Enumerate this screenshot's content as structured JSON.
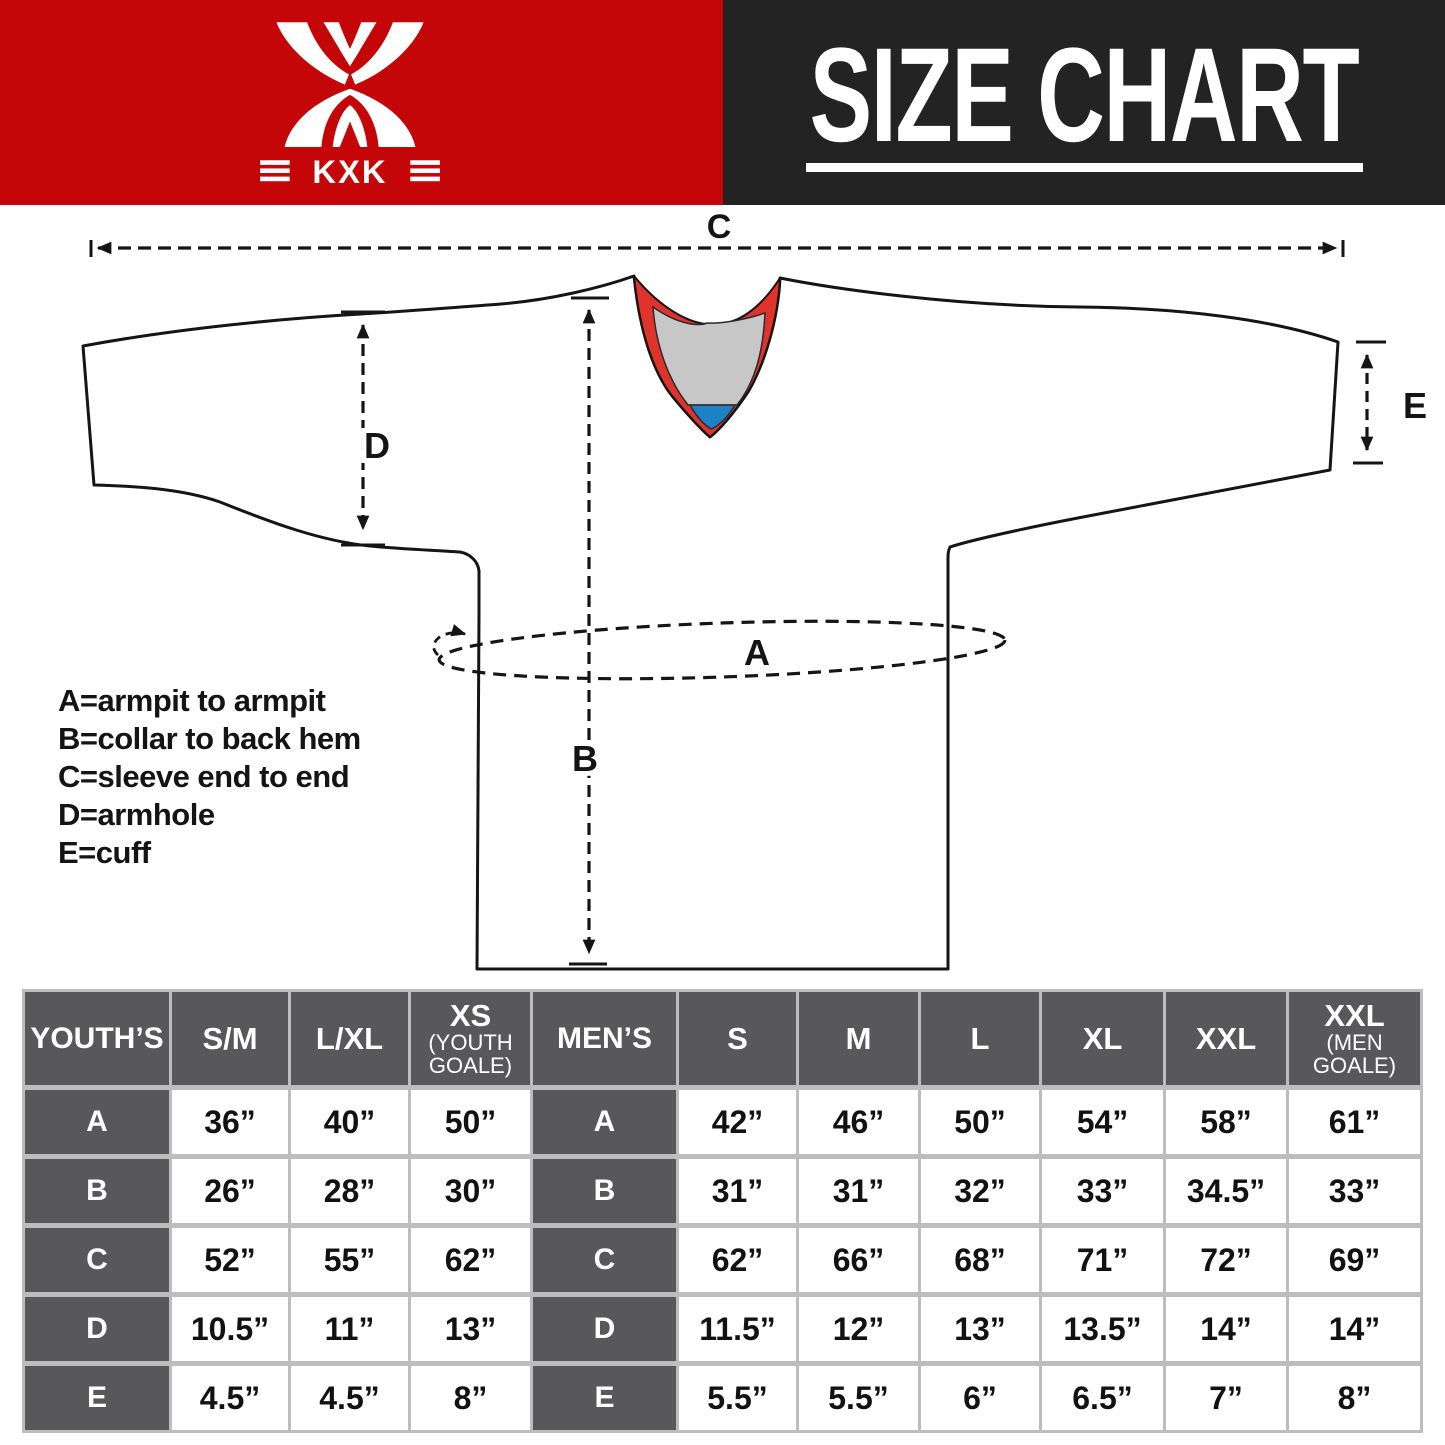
{
  "brand": {
    "name": "KXK"
  },
  "title": "SIZE CHART",
  "measure_labels": {
    "a": "A",
    "b": "B",
    "c": "C",
    "d": "D",
    "e": "E"
  },
  "legend": {
    "a": "A=armpit to armpit",
    "b": "B=collar to back hem",
    "c": "C=sleeve end to end",
    "d": "D=armhole",
    "e": "E=cuff"
  },
  "colors": {
    "brand_red": "#C40609",
    "header_dark": "#232323",
    "collar_red": "#E0332C",
    "collar_gray": "#C7C7C7",
    "collar_blue": "#1C82C5",
    "table_head_gray": "#58585A",
    "table_separator": "#BDBDBD",
    "line_black": "#151515"
  },
  "size_table": {
    "row_labels": [
      "A",
      "B",
      "C",
      "D",
      "E"
    ],
    "youth": {
      "label": "YOUTH’S",
      "columns": [
        {
          "size": "S/M",
          "note": "",
          "values": [
            "36”",
            "26”",
            "52”",
            "10.5”",
            "4.5”"
          ]
        },
        {
          "size": "L/XL",
          "note": "",
          "values": [
            "40”",
            "28”",
            "55”",
            "11”",
            "4.5”"
          ]
        },
        {
          "size": "XS",
          "note": "(YOUTH GOALE)",
          "values": [
            "50”",
            "30”",
            "62”",
            "13”",
            "8”"
          ]
        }
      ]
    },
    "men": {
      "label": "MEN’S",
      "columns": [
        {
          "size": "S",
          "note": "",
          "values": [
            "42”",
            "31”",
            "62”",
            "11.5”",
            "5.5”"
          ]
        },
        {
          "size": "M",
          "note": "",
          "values": [
            "46”",
            "31”",
            "66”",
            "12”",
            "5.5”"
          ]
        },
        {
          "size": "L",
          "note": "",
          "values": [
            "50”",
            "32”",
            "68”",
            "13”",
            "6”"
          ]
        },
        {
          "size": "XL",
          "note": "",
          "values": [
            "54”",
            "33”",
            "71”",
            "13.5”",
            "6.5”"
          ]
        },
        {
          "size": "XXL",
          "note": "",
          "values": [
            "58”",
            "34.5”",
            "72”",
            "14”",
            "7”"
          ]
        },
        {
          "size": "XXL",
          "note": "(MEN GOALE)",
          "values": [
            "61”",
            "33”",
            "69”",
            "14”",
            "8”"
          ]
        }
      ]
    }
  }
}
